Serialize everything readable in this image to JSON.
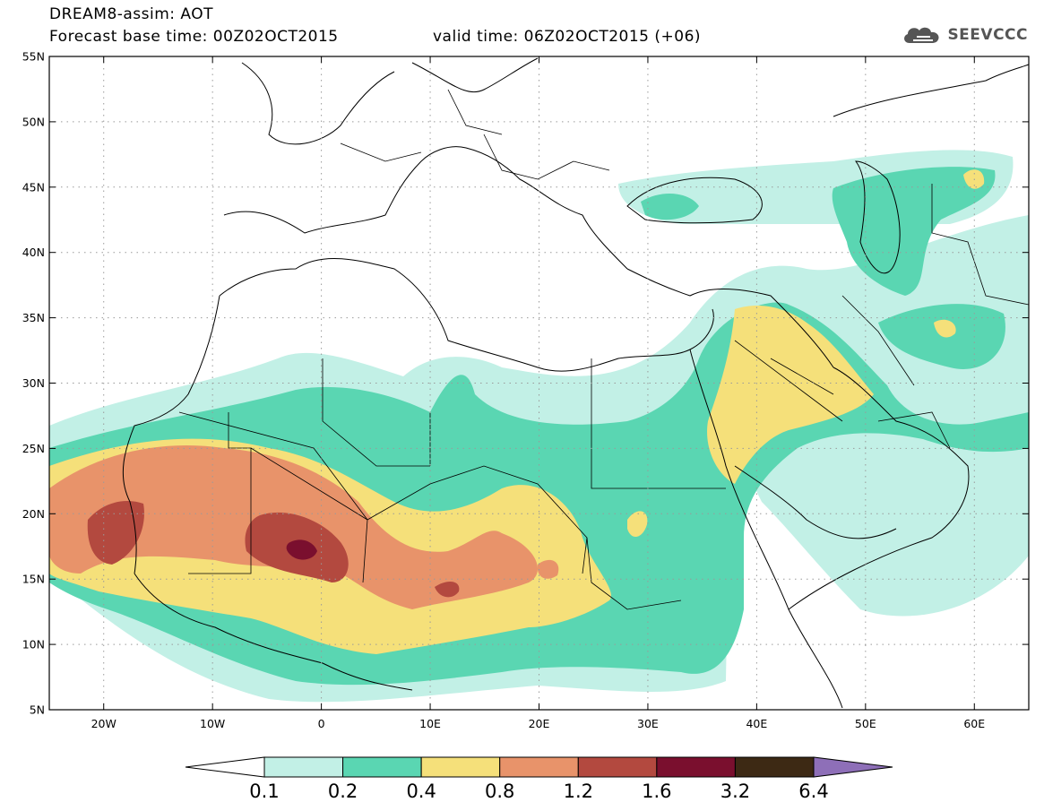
{
  "header": {
    "title": "DREAM8-assim: AOT",
    "base_time": "Forecast base time: 00Z02OCT2015",
    "valid_time": "valid time: 06Z02OCT2015 (+06)"
  },
  "logo": {
    "text": "SEEVCCC",
    "icon": "cloud-icon"
  },
  "map": {
    "projection": "lat-lon",
    "lon_range": [
      -25,
      65
    ],
    "lat_range": [
      5,
      55
    ],
    "lat_ticks": [
      {
        "value": 55,
        "label": "55N"
      },
      {
        "value": 50,
        "label": "50N"
      },
      {
        "value": 45,
        "label": "45N"
      },
      {
        "value": 40,
        "label": "40N"
      },
      {
        "value": 35,
        "label": "35N"
      },
      {
        "value": 30,
        "label": "30N"
      },
      {
        "value": 25,
        "label": "25N"
      },
      {
        "value": 20,
        "label": "20N"
      },
      {
        "value": 15,
        "label": "15N"
      },
      {
        "value": 10,
        "label": "10N"
      },
      {
        "value": 5,
        "label": "5N"
      }
    ],
    "lon_ticks": [
      {
        "value": -20,
        "label": "20W"
      },
      {
        "value": -10,
        "label": "10W"
      },
      {
        "value": 0,
        "label": "0"
      },
      {
        "value": 10,
        "label": "10E"
      },
      {
        "value": 20,
        "label": "20E"
      },
      {
        "value": 30,
        "label": "30E"
      },
      {
        "value": 40,
        "label": "40E"
      },
      {
        "value": 50,
        "label": "50E"
      },
      {
        "value": 60,
        "label": "60E"
      }
    ],
    "grid": true
  },
  "colorbar": {
    "colors": [
      "#ffffff",
      "#c2f0e6",
      "#5ad6b2",
      "#f5e07a",
      "#e8936a",
      "#b3493f",
      "#7a0f2e",
      "#3d2914",
      "#8e6fb8"
    ],
    "labels": [
      "0.1",
      "0.2",
      "0.4",
      "0.8",
      "1.2",
      "1.6",
      "3.2",
      "6.4"
    ]
  }
}
